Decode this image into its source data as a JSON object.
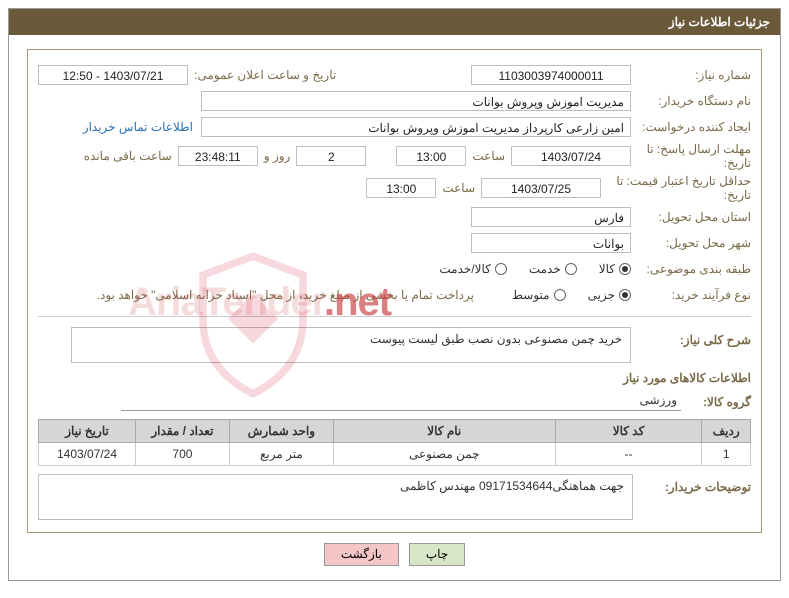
{
  "titleBar": "جزئیات اطلاعات نیاز",
  "labels": {
    "needNumber": "شماره نیاز:",
    "announceDateTime": "تاریخ و ساعت اعلان عمومی:",
    "buyerOrg": "نام دستگاه خریدار:",
    "requester": "ایجاد کننده درخواست:",
    "replyDeadline": "مهلت ارسال پاسخ: تا تاریخ:",
    "hour": "ساعت",
    "dayAnd": "روز و",
    "remaining": "ساعت باقی مانده",
    "priceValidity": "حداقل تاریخ اعتبار قیمت: تا تاریخ:",
    "deliveryProvince": "استان محل تحویل:",
    "deliveryCity": "شهر محل تحویل:",
    "category": "طبقه بندی موضوعی:",
    "purchaseType": "نوع فرآیند خرید:",
    "contactLink": "اطلاعات تماس خریدار",
    "generalDesc": "شرح کلی نیاز:",
    "itemsHeader": "اطلاعات کالاهای مورد نیاز",
    "itemGroup": "گروه کالا:",
    "buyerNotes": "توضیحات خریدار:"
  },
  "values": {
    "needNumber": "1103003974000011",
    "announceDateTime": "1403/07/21 - 12:50",
    "buyerOrg": "مدیریت اموزش وپروش بوانات",
    "requester": "امین زارعی کارپرداز مدیریت اموزش وپروش بوانات",
    "replyDate": "1403/07/24",
    "replyHour": "13:00",
    "remainDays": "2",
    "remainClock": "23:48:11",
    "priceValidDate": "1403/07/25",
    "priceValidHour": "13:00",
    "province": "فارس",
    "city": "بوانات",
    "generalDesc": "خرید چمن مصنوعی بدون نصب طبق لیست پیوست",
    "itemGroup": "ورزشی",
    "buyerNotes": "جهت هماهنگی09171534644 مهندس کاظمی",
    "payNote": "پرداخت تمام یا بخشی از مبلغ خرید، از محل \"اسناد خزانه اسلامی\" خواهد بود."
  },
  "categoryOptions": {
    "goods": "کالا",
    "service": "خدمت",
    "goodsService": "کالا/خدمت",
    "selected": "goods"
  },
  "purchaseOptions": {
    "minor": "جزیی",
    "medium": "متوسط",
    "selected": "minor"
  },
  "table": {
    "headers": {
      "row": "ردیف",
      "code": "کد کالا",
      "name": "نام کالا",
      "unit": "واحد شمارش",
      "qty": "تعداد / مقدار",
      "needDate": "تاریخ نیاز"
    },
    "rows": [
      {
        "row": "1",
        "code": "--",
        "name": "چمن مصنوعی",
        "unit": "متر مربع",
        "qty": "700",
        "needDate": "1403/07/24"
      }
    ],
    "widths": {
      "row": "50",
      "code": "160",
      "name": "240",
      "unit": "110",
      "qty": "100",
      "needDate": "100"
    }
  },
  "buttons": {
    "print": "چاپ",
    "back": "بازگشت"
  },
  "watermarkText": "AriaTender",
  "watermarkSuffix": ".net"
}
